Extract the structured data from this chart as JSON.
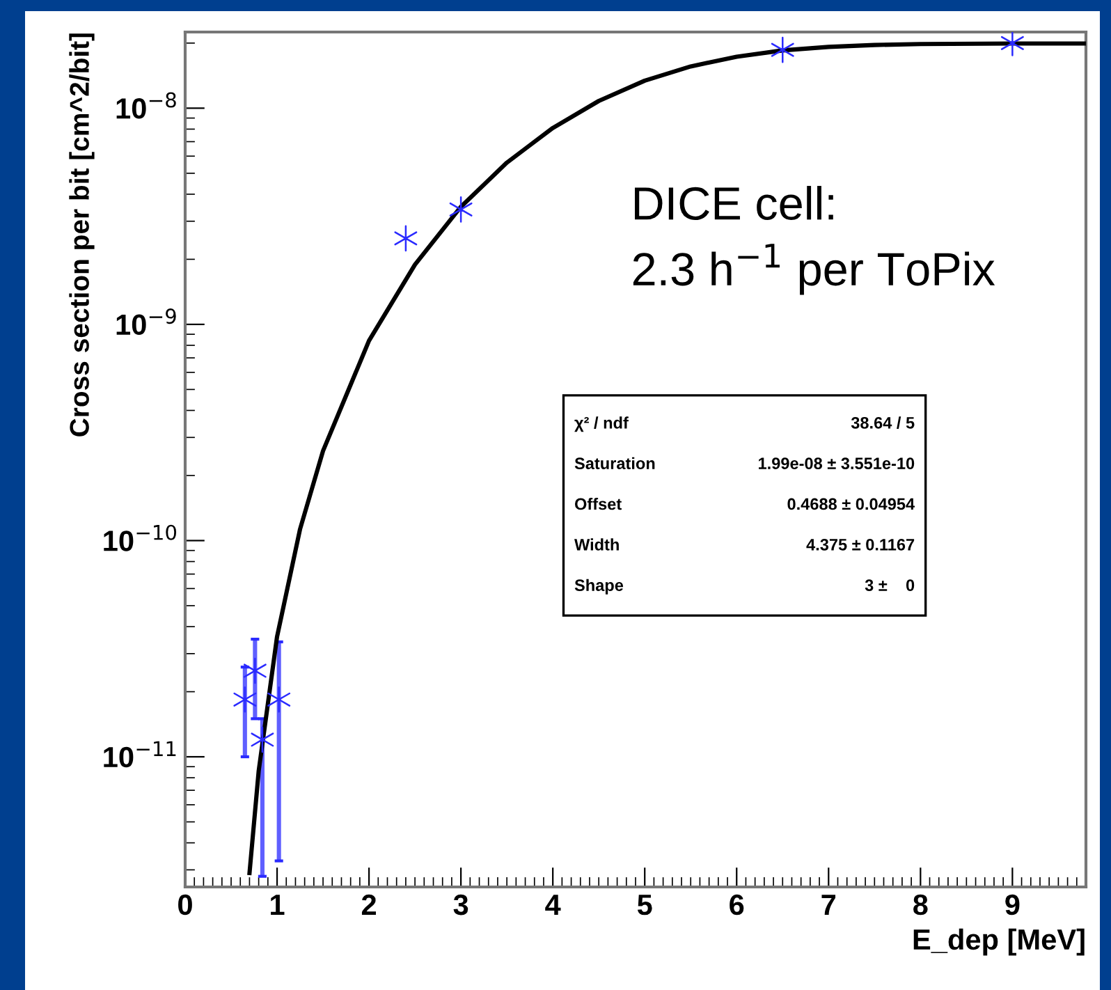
{
  "chart_data": {
    "type": "scatter",
    "xlabel": "E_dep [MeV]",
    "ylabel": "Cross section per bit [cm^2/bit]",
    "log": "y",
    "grid": false,
    "xlim": [
      0,
      9.8
    ],
    "xticks": [
      0,
      1,
      2,
      3,
      4,
      5,
      6,
      7,
      8,
      9
    ],
    "ylim": [
      2.5e-12,
      2.25e-08
    ],
    "yticks": [
      {
        "value": 1e-11,
        "label": "10$^{−11}$"
      },
      {
        "value": 1e-10,
        "label": "10$^{−10}$"
      },
      {
        "value": 1e-09,
        "label": "10$^{−9}$"
      },
      {
        "value": 1e-08,
        "label": "10$^{−8}$"
      }
    ],
    "series": [
      {
        "marker": "cross",
        "color": "#2a2aff",
        "x": [
          0.65,
          0.76,
          0.84,
          1.02,
          2.4,
          3.0,
          6.5,
          9.0
        ],
        "values": [
          1.84e-11,
          2.5e-11,
          1.2e-11,
          1.84e-11,
          2.5e-09,
          3.4e-09,
          1.86e-08,
          2e-08
        ],
        "errors": [
          [
            1e-11,
            2.6e-11
          ],
          [
            1.5e-11,
            3.5e-11
          ],
          [
            2.8e-12,
            1.5e-11
          ],
          [
            3.3e-12,
            3.4e-11
          ],
          null,
          null,
          null,
          null
        ]
      },
      {
        "type": "line",
        "marker": "none",
        "color": "#000000",
        "x": [
          0.7,
          0.8,
          1.0,
          1.25,
          1.5,
          2.0,
          2.5,
          3.0,
          3.5,
          4.0,
          4.5,
          5.0,
          5.5,
          6.0,
          6.5,
          7.0,
          7.5,
          8.0,
          9.0,
          9.8
        ],
        "values": [
          2.9e-12,
          8.6e-12,
          3.6e-11,
          1.13e-10,
          2.6e-10,
          8.4e-10,
          1.89e-09,
          3.5e-09,
          5.6e-09,
          8.1e-09,
          1.08e-08,
          1.34e-08,
          1.56e-08,
          1.73e-08,
          1.85e-08,
          1.92e-08,
          1.96e-08,
          1.98e-08,
          1.99e-08,
          1.99e-08
        ]
      }
    ],
    "annotations": [
      "DICE cell:\n2.3 h$^{−1}$ per ToPix",
      "χ² / ndf\t38.64 / 5",
      "Saturation\t1.99e-08 ± 3.551e-10",
      "Offset\t0.4688 ± 0.04954",
      "Width\t4.375 ± 0.1167",
      "Shape\t3 ±    0"
    ]
  }
}
